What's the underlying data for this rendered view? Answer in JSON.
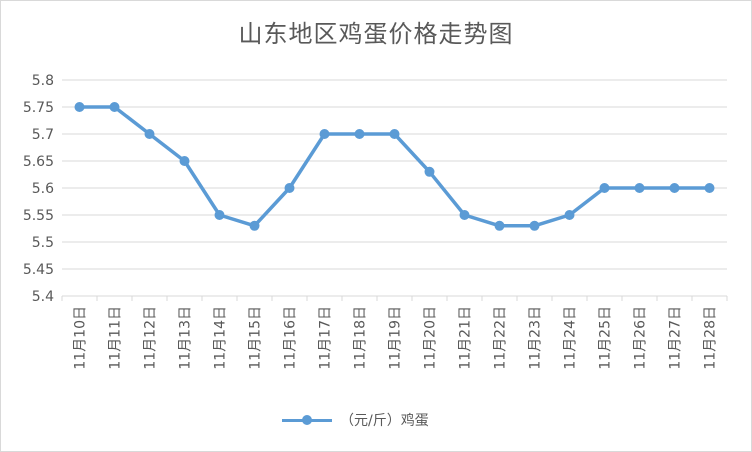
{
  "chart_data": {
    "type": "line",
    "title": "山东地区鸡蛋价格走势图",
    "categories": [
      "11月10日",
      "11月11日",
      "11月12日",
      "11月13日",
      "11月14日",
      "11月15日",
      "11月16日",
      "11月17日",
      "11月18日",
      "11月19日",
      "11月20日",
      "11月21日",
      "11月22日",
      "11月23日",
      "11月24日",
      "11月25日",
      "11月26日",
      "11月27日",
      "11月28日"
    ],
    "series": [
      {
        "name": "（元/斤）鸡蛋",
        "values": [
          5.75,
          5.75,
          5.7,
          5.65,
          5.55,
          5.53,
          5.6,
          5.7,
          5.7,
          5.7,
          5.63,
          5.55,
          5.53,
          5.53,
          5.55,
          5.6,
          5.6,
          5.6,
          5.6
        ],
        "color": "#5b9bd5"
      }
    ],
    "ylim": [
      5.4,
      5.8
    ],
    "yticks": [
      "5.4",
      "5.45",
      "5.5",
      "5.55",
      "5.6",
      "5.65",
      "5.7",
      "5.75",
      "5.8"
    ],
    "ytick_values": [
      5.4,
      5.45,
      5.5,
      5.55,
      5.6,
      5.65,
      5.7,
      5.75,
      5.8
    ],
    "grid": true,
    "legend_position": "bottom",
    "colors": {
      "gridline": "#d9d9d9",
      "text": "#595959"
    }
  }
}
